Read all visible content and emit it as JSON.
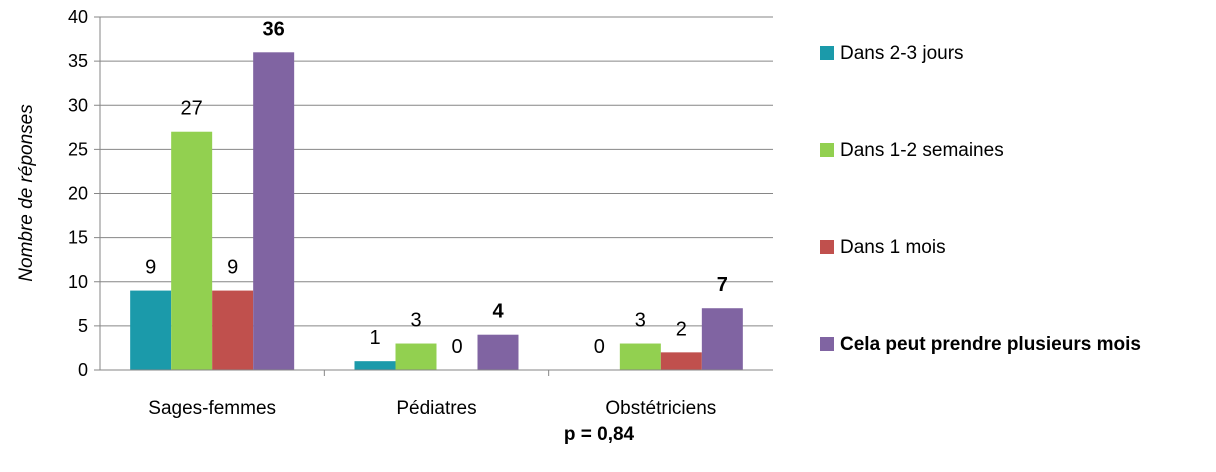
{
  "chart_data": {
    "type": "bar",
    "ylabel": "Nombre de réponses",
    "xlabel": "p = 0,84",
    "ylim": [
      0,
      40
    ],
    "yticks": [
      0,
      5,
      10,
      15,
      20,
      25,
      30,
      35,
      40
    ],
    "grid": true,
    "legend_position": "right",
    "categories": [
      "Sages-femmes",
      "Pédiatres",
      "Obstétriciens"
    ],
    "series": [
      {
        "name": "Dans 2-3 jours",
        "color": "#1b9aaa",
        "values": [
          9,
          1,
          0
        ],
        "label_bold": [
          false,
          false,
          false
        ]
      },
      {
        "name": "Dans 1-2 semaines",
        "color": "#92d050",
        "values": [
          27,
          3,
          3
        ],
        "label_bold": [
          false,
          false,
          false
        ]
      },
      {
        "name": "Dans 1 mois",
        "color": "#c0504d",
        "values": [
          9,
          0,
          2
        ],
        "label_bold": [
          false,
          false,
          false
        ]
      },
      {
        "name": "Cela peut prendre plusieurs mois",
        "color": "#8064a2",
        "values": [
          36,
          4,
          7
        ],
        "label_bold": [
          true,
          true,
          true
        ],
        "legend_bold": true
      }
    ],
    "axis_color": "#868686",
    "grid_color": "#868686"
  }
}
